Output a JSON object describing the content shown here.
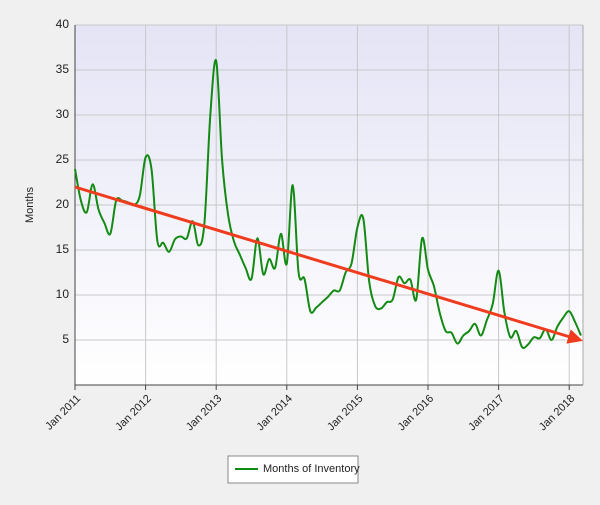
{
  "chart_data": {
    "type": "line",
    "y_label": "Months",
    "categories": [
      "Jan 2011",
      null,
      null,
      null,
      null,
      null,
      null,
      null,
      null,
      null,
      null,
      null,
      "Jan 2012",
      null,
      null,
      null,
      null,
      null,
      null,
      null,
      null,
      null,
      null,
      null,
      "Jan 2013",
      null,
      null,
      null,
      null,
      null,
      null,
      null,
      null,
      null,
      null,
      null,
      "Jan 2014",
      null,
      null,
      null,
      null,
      null,
      null,
      null,
      null,
      null,
      null,
      null,
      "Jan 2015",
      null,
      null,
      null,
      null,
      null,
      null,
      null,
      null,
      null,
      null,
      null,
      "Jan 2016",
      null,
      null,
      null,
      null,
      null,
      null,
      null,
      null,
      null,
      null,
      null,
      "Jan 2017",
      null,
      null,
      null,
      null,
      null,
      null,
      null,
      null,
      null,
      null,
      null,
      "Jan 2018",
      null,
      null
    ],
    "series": [
      {
        "name": "Months of Inventory",
        "color": "#138a13",
        "values": [
          24,
          20.5,
          19.2,
          22.3,
          19.5,
          18,
          16.8,
          20.5,
          20.5,
          20.3,
          20,
          21,
          25.3,
          24,
          16,
          15.8,
          14.8,
          16.2,
          16.5,
          16.3,
          18.2,
          15.5,
          18,
          30,
          36,
          25,
          19,
          16,
          14.5,
          13,
          11.8,
          16.3,
          12.3,
          14,
          13,
          16.8,
          13.5,
          22.2,
          12.5,
          11.8,
          8.2,
          8.6,
          9.2,
          9.8,
          10.5,
          10.5,
          12.5,
          13.5,
          17.5,
          18.5,
          11.5,
          8.8,
          8.5,
          9.2,
          9.5,
          12,
          11.3,
          11.7,
          9.5,
          16.3,
          12.8,
          11,
          8,
          6,
          5.8,
          4.6,
          5.5,
          6,
          6.8,
          5.5,
          7.2,
          9,
          12.7,
          8,
          5.3,
          6,
          4.2,
          4.5,
          5.3,
          5.2,
          6.2,
          5,
          6.5,
          7.5,
          8.2,
          7,
          5.5
        ]
      }
    ],
    "trend": {
      "start": 22,
      "end": 5,
      "color": "#f03c1e"
    },
    "ylim": [
      0,
      40
    ],
    "yticks": [
      5,
      10,
      15,
      20,
      25,
      30,
      35,
      40
    ],
    "grid": true
  }
}
